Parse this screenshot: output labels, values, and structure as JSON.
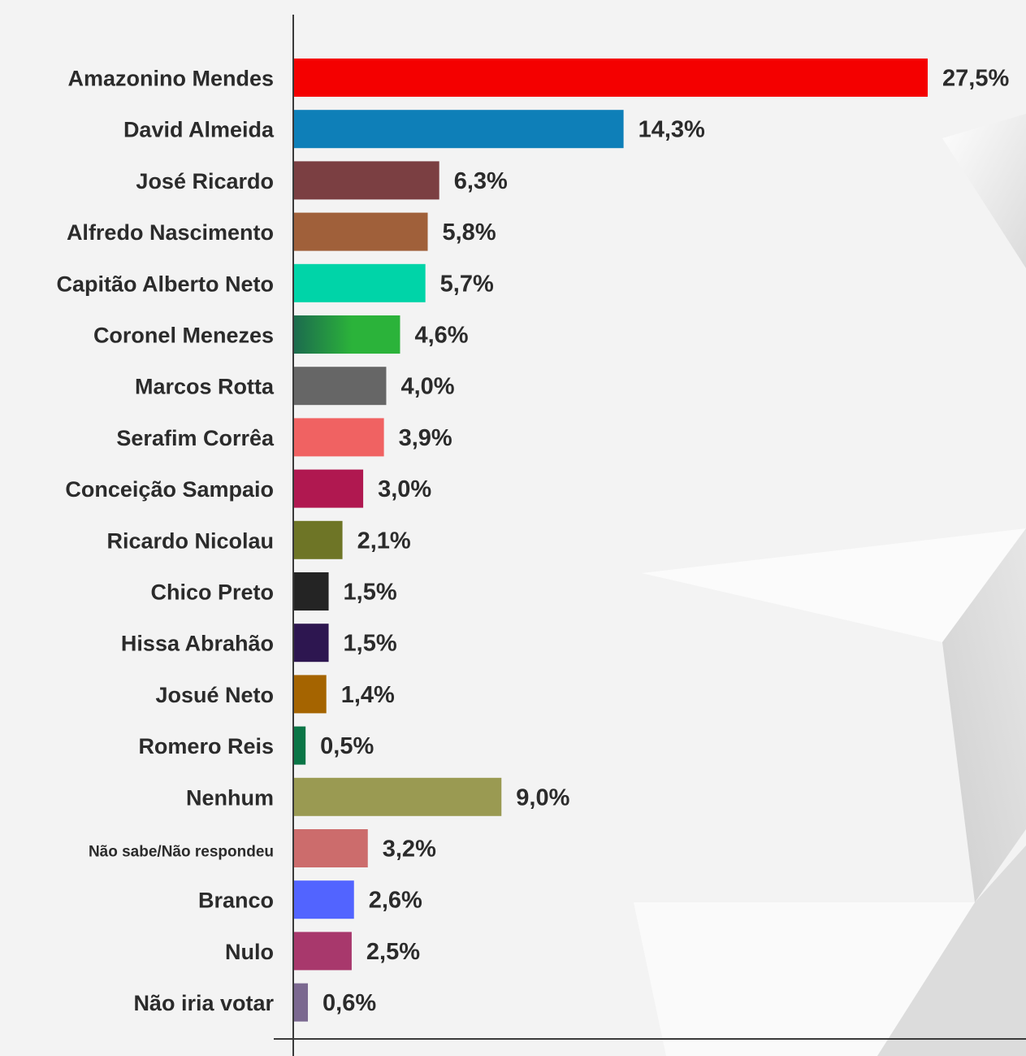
{
  "chart_data": {
    "type": "bar",
    "orientation": "horizontal",
    "categories": [
      "Amazonino Mendes",
      "David Almeida",
      "José Ricardo",
      "Alfredo Nascimento",
      "Capitão Alberto Neto",
      "Coronel Menezes",
      "Marcos Rotta",
      "Serafim Corrêa",
      "Conceição Sampaio",
      "Ricardo Nicolau",
      "Chico Preto",
      "Hissa Abrahão",
      "Josué Neto",
      "Romero Reis",
      "Nenhum",
      "Não sabe/Não respondeu",
      "Branco",
      "Nulo",
      "Não iria votar"
    ],
    "values": [
      27.5,
      14.3,
      6.3,
      5.8,
      5.7,
      4.6,
      4.0,
      3.9,
      3.0,
      2.1,
      1.5,
      1.5,
      1.4,
      0.5,
      9.0,
      3.2,
      2.6,
      2.5,
      0.6
    ],
    "value_labels": [
      "27,5%",
      "14,3%",
      "6,3%",
      "5,8%",
      "5,7%",
      "4,6%",
      "4,0%",
      "3,9%",
      "3,0%",
      "2,1%",
      "1,5%",
      "1,5%",
      "1,4%",
      "0,5%",
      "9,0%",
      "3,2%",
      "2,6%",
      "2,5%",
      "0,6%"
    ],
    "colors": [
      "#f40000",
      "#0e7fb8",
      "#7b3f42",
      "#a0603a",
      "#00d4a8",
      "#1f9e3e",
      "#666666",
      "#f06262",
      "#b01850",
      "#6e7526",
      "#242424",
      "#2d1650",
      "#a56400",
      "#0a7546",
      "#9a9a52",
      "#cc6c6c",
      "#5264ff",
      "#a8386c",
      "#7b6890"
    ],
    "gradient_bar": {
      "index": 5,
      "from": "#1c6b4e",
      "to": "#2bb33a"
    },
    "ylim": [
      0,
      28
    ],
    "grid": false,
    "legend": "none",
    "title": "",
    "xlabel": "",
    "ylabel": ""
  }
}
